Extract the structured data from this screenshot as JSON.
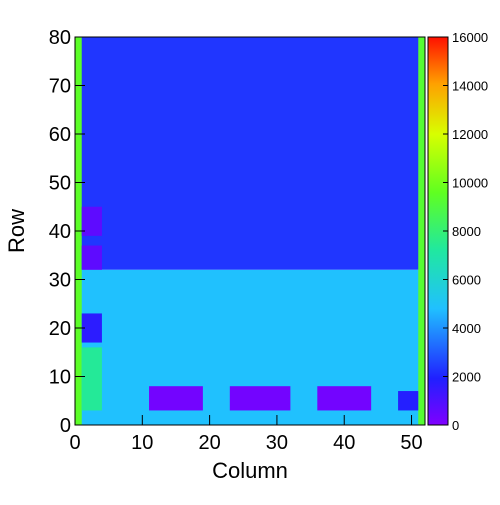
{
  "chart_data": {
    "type": "heatmap",
    "title": "",
    "xlabel": "Column",
    "ylabel": "Row",
    "xlim": [
      0,
      52
    ],
    "ylim": [
      0,
      80
    ],
    "x_ticks": [
      "0",
      "10",
      "20",
      "30",
      "40",
      "50"
    ],
    "y_ticks": [
      "0",
      "10",
      "20",
      "30",
      "40",
      "50",
      "60",
      "70",
      "80"
    ],
    "colorbar": {
      "range": [
        0,
        16000
      ],
      "ticks": [
        "0",
        "2000",
        "4000",
        "6000",
        "8000",
        "10000",
        "12000",
        "14000",
        "16000"
      ],
      "palette": [
        "#8000ff",
        "#2020ff",
        "#20c0ff",
        "#20e8a0",
        "#60ff20",
        "#d8ff00",
        "#ffa000",
        "#ff1000"
      ]
    },
    "grid": false,
    "bins": {
      "x": 52,
      "y": 80
    },
    "regions": [
      {
        "name": "upper-background",
        "cols": [
          0,
          52
        ],
        "rows": [
          32,
          80
        ],
        "value": 2600
      },
      {
        "name": "lower-background",
        "cols": [
          0,
          52
        ],
        "rows": [
          0,
          32
        ],
        "value": 4600
      },
      {
        "name": "left-edge-strip",
        "cols": [
          0,
          1
        ],
        "rows": [
          0,
          80
        ],
        "value": 9000
      },
      {
        "name": "right-edge-strip",
        "cols": [
          51,
          52
        ],
        "rows": [
          0,
          80
        ],
        "value": 8800
      },
      {
        "name": "left-dark-block-upper",
        "cols": [
          1,
          4
        ],
        "rows": [
          39,
          45
        ],
        "value": 800
      },
      {
        "name": "left-dark-block-lower",
        "cols": [
          1,
          4
        ],
        "rows": [
          32,
          37
        ],
        "value": 800
      },
      {
        "name": "left-blue-block",
        "cols": [
          1,
          4
        ],
        "rows": [
          17,
          23
        ],
        "value": 2000
      },
      {
        "name": "left-green-block",
        "cols": [
          1,
          4
        ],
        "rows": [
          3,
          16
        ],
        "value": 7000
      },
      {
        "name": "bottom-purple-block-1",
        "cols": [
          11,
          19
        ],
        "rows": [
          3,
          8
        ],
        "value": 300
      },
      {
        "name": "bottom-purple-block-2",
        "cols": [
          23,
          32
        ],
        "rows": [
          3,
          8
        ],
        "value": 300
      },
      {
        "name": "bottom-purple-block-3",
        "cols": [
          36,
          44
        ],
        "rows": [
          3,
          8
        ],
        "value": 300
      },
      {
        "name": "bottom-right-blue-block",
        "cols": [
          48,
          51
        ],
        "rows": [
          3,
          7
        ],
        "value": 2200
      }
    ]
  }
}
